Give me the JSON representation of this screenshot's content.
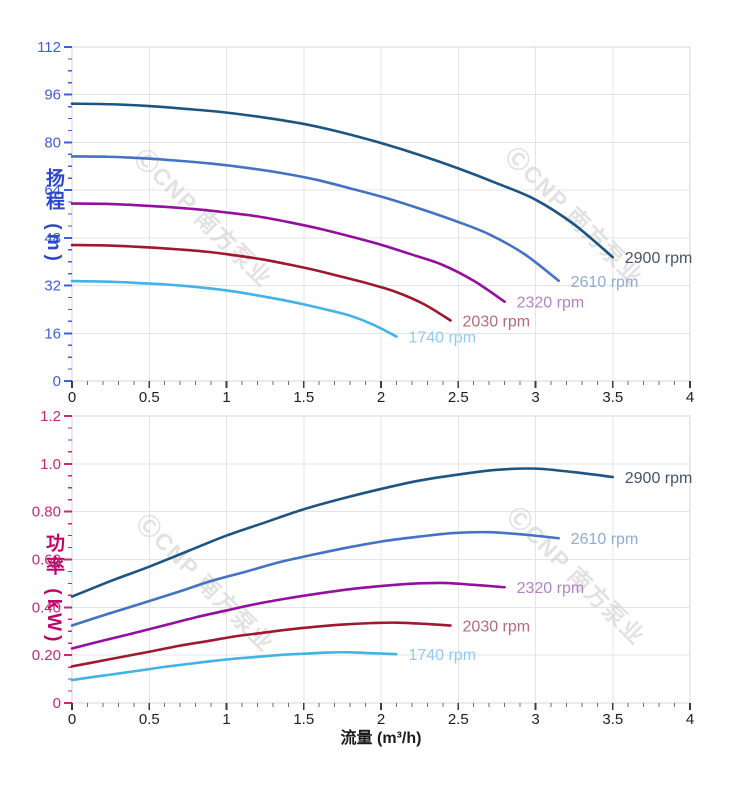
{
  "figure": {
    "x_axis_title": "流量 (m³/h)",
    "watermark_text": "ⒸCNP 南方泵业"
  },
  "chart_data": [
    {
      "type": "line",
      "title": "",
      "xlabel": "流量 (m³/h)",
      "ylabel": "扬程 (m)",
      "xlim": [
        0,
        4
      ],
      "ylim": [
        0,
        112
      ],
      "grid": true,
      "legend_position": "curve-end-labels",
      "x_tick_labels": [
        "0",
        "0.5",
        "1",
        "1.5",
        "2",
        "2.5",
        "3",
        "3.5",
        "4"
      ],
      "x_major_step": 0.5,
      "x_minor_step": 0.1,
      "y_tick_labels": [
        "0",
        "16",
        "32",
        "48",
        "64",
        "80",
        "96",
        "112"
      ],
      "y_major_step": 16,
      "y_minor_step": 4,
      "axis_color": "#3f5ed9",
      "title_color": "#2b47cc",
      "series": [
        {
          "name": "2900 rpm",
          "color": "#1c5483",
          "label_color": "#44546a",
          "x": [
            0,
            0.25,
            0.5,
            0.75,
            1,
            1.25,
            1.5,
            1.75,
            2,
            2.25,
            2.5,
            2.75,
            3,
            3.25,
            3.5
          ],
          "y": [
            93,
            92.8,
            92.2,
            91.2,
            90,
            88.3,
            86.2,
            83.3,
            79.8,
            75.8,
            71.3,
            66.3,
            60.8,
            52.5,
            41.5
          ]
        },
        {
          "name": "2610 rpm",
          "color": "#4472c4",
          "label_color": "#8faadc",
          "x": [
            0,
            0.23,
            0.45,
            0.68,
            0.9,
            1.13,
            1.35,
            1.58,
            1.8,
            2.03,
            2.25,
            2.48,
            2.7,
            2.93,
            3.15
          ],
          "y": [
            75.3,
            75.2,
            74.7,
            73.9,
            72.9,
            71.5,
            69.8,
            67.5,
            64.6,
            61.4,
            57.8,
            53.7,
            49.2,
            42.5,
            33.6
          ]
        },
        {
          "name": "2320 rpm",
          "color": "#940f9e",
          "label_color": "#b581c9",
          "x": [
            0,
            0.2,
            0.4,
            0.6,
            0.8,
            1,
            1.2,
            1.4,
            1.6,
            1.8,
            2,
            2.2,
            2.4,
            2.6,
            2.8
          ],
          "y": [
            59.5,
            59.4,
            59,
            58.4,
            57.6,
            56.5,
            55.2,
            53.3,
            51.1,
            48.5,
            45.7,
            42.4,
            38.9,
            33.6,
            26.6
          ]
        },
        {
          "name": "2030 rpm",
          "color": "#9e1930",
          "label_color": "#b26b7c",
          "x": [
            0,
            0.18,
            0.35,
            0.53,
            0.7,
            0.88,
            1.05,
            1.23,
            1.4,
            1.58,
            1.75,
            1.93,
            2.1,
            2.28,
            2.45
          ],
          "y": [
            45.6,
            45.5,
            45.2,
            44.7,
            44.1,
            43.3,
            42.2,
            40.8,
            39.1,
            37.1,
            34.9,
            32.5,
            29.8,
            25.7,
            20.3
          ]
        },
        {
          "name": "1740 rpm",
          "color": "#41b3e6",
          "label_color": "#93c9ef",
          "x": [
            0,
            0.15,
            0.3,
            0.45,
            0.6,
            0.75,
            0.9,
            1.05,
            1.2,
            1.35,
            1.5,
            1.65,
            1.8,
            1.95,
            2.1
          ],
          "y": [
            33.5,
            33.4,
            33.2,
            32.8,
            32.4,
            31.8,
            31,
            30,
            28.7,
            27.3,
            25.7,
            23.9,
            21.9,
            18.9,
            14.9
          ]
        }
      ]
    },
    {
      "type": "line",
      "title": "",
      "xlabel": "流量 (m³/h)",
      "ylabel": "功率 (kW)",
      "xlim": [
        0,
        4
      ],
      "ylim": [
        0,
        1.2
      ],
      "grid": true,
      "legend_position": "curve-end-labels",
      "x_tick_labels": [
        "0",
        "0.5",
        "1",
        "1.5",
        "2",
        "2.5",
        "3",
        "3.5",
        "4"
      ],
      "x_major_step": 0.5,
      "x_minor_step": 0.1,
      "y_tick_labels": [
        "0",
        "0.20",
        "0.40",
        "0.60",
        "0.80",
        "1.0",
        "1.2"
      ],
      "y_major_step": 0.2,
      "y_minor_step": 0.05,
      "axis_color": "#cb2873",
      "title_color": "#c00568",
      "series": [
        {
          "name": "2900 rpm",
          "color": "#1c5483",
          "label_color": "#44546a",
          "x": [
            0,
            0.25,
            0.5,
            0.75,
            1,
            1.25,
            1.5,
            1.75,
            2,
            2.25,
            2.5,
            2.75,
            3,
            3.25,
            3.5
          ],
          "y": [
            0.445,
            0.51,
            0.57,
            0.635,
            0.7,
            0.755,
            0.81,
            0.855,
            0.895,
            0.93,
            0.955,
            0.975,
            0.98,
            0.965,
            0.945
          ]
        },
        {
          "name": "2610 rpm",
          "color": "#4472c4",
          "label_color": "#8faadc",
          "x": [
            0,
            0.23,
            0.45,
            0.68,
            0.9,
            1.13,
            1.35,
            1.58,
            1.8,
            2.03,
            2.25,
            2.48,
            2.7,
            2.93,
            3.15
          ],
          "y": [
            0.324,
            0.372,
            0.416,
            0.463,
            0.51,
            0.55,
            0.59,
            0.623,
            0.652,
            0.678,
            0.696,
            0.711,
            0.714,
            0.704,
            0.689
          ]
        },
        {
          "name": "2320 rpm",
          "color": "#940f9e",
          "label_color": "#b581c9",
          "x": [
            0,
            0.2,
            0.4,
            0.6,
            0.8,
            1,
            1.2,
            1.4,
            1.6,
            1.8,
            2,
            2.2,
            2.4,
            2.6,
            2.8
          ],
          "y": [
            0.228,
            0.261,
            0.292,
            0.325,
            0.358,
            0.387,
            0.415,
            0.438,
            0.458,
            0.476,
            0.489,
            0.499,
            0.502,
            0.494,
            0.484
          ]
        },
        {
          "name": "2030 rpm",
          "color": "#9e1930",
          "label_color": "#b26b7c",
          "x": [
            0,
            0.18,
            0.35,
            0.53,
            0.7,
            0.88,
            1.05,
            1.23,
            1.4,
            1.58,
            1.75,
            1.93,
            2.1,
            2.28,
            2.45
          ],
          "y": [
            0.153,
            0.175,
            0.196,
            0.218,
            0.24,
            0.259,
            0.278,
            0.293,
            0.307,
            0.319,
            0.328,
            0.334,
            0.336,
            0.331,
            0.324
          ]
        },
        {
          "name": "1740 rpm",
          "color": "#41b3e6",
          "label_color": "#93c9ef",
          "x": [
            0,
            0.15,
            0.3,
            0.45,
            0.6,
            0.75,
            0.9,
            1.05,
            1.2,
            1.35,
            1.5,
            1.65,
            1.8,
            1.95,
            2.1
          ],
          "y": [
            0.096,
            0.11,
            0.123,
            0.137,
            0.151,
            0.163,
            0.175,
            0.185,
            0.193,
            0.201,
            0.206,
            0.211,
            0.212,
            0.208,
            0.204
          ]
        }
      ]
    }
  ]
}
